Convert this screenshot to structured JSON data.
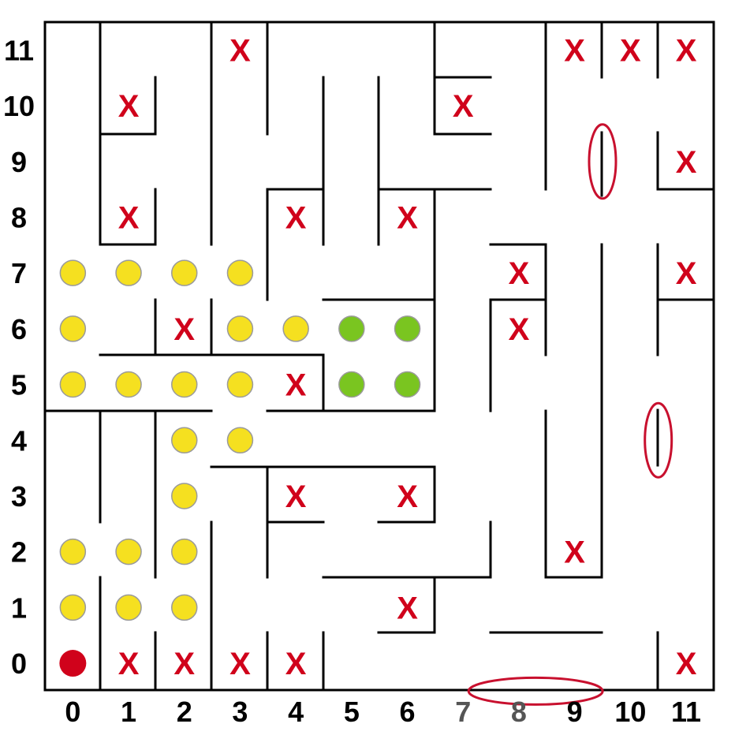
{
  "grid": {
    "columns": 12,
    "rows": 12,
    "x_labels": [
      "0",
      "1",
      "2",
      "3",
      "4",
      "5",
      "6",
      "7",
      "8",
      "9",
      "10",
      "11"
    ],
    "y_labels": [
      "0",
      "1",
      "2",
      "3",
      "4",
      "5",
      "6",
      "7",
      "8",
      "9",
      "10",
      "11"
    ]
  },
  "colors": {
    "wall": "#000000",
    "x_mark": "#d0021b",
    "start_marker": "#d0021b",
    "path_dot": "#f5e020",
    "goal_dot": "#7ac520",
    "dot_outline": "#9a9a9a",
    "highlight_ring": "#c8102e",
    "axis_label": "#000000",
    "axis_label_muted": "#555555"
  },
  "muted_x_labels": [
    "7",
    "8"
  ],
  "start": {
    "col": 0,
    "row": 0
  },
  "x_mark_symbol": "X",
  "x_marks": [
    [
      3,
      11
    ],
    [
      9,
      11
    ],
    [
      10,
      11
    ],
    [
      11,
      11
    ],
    [
      1,
      10
    ],
    [
      7,
      10
    ],
    [
      11,
      9
    ],
    [
      1,
      8
    ],
    [
      4,
      8
    ],
    [
      6,
      8
    ],
    [
      8,
      7
    ],
    [
      11,
      7
    ],
    [
      2,
      6
    ],
    [
      8,
      6
    ],
    [
      4,
      5
    ],
    [
      4,
      3
    ],
    [
      6,
      3
    ],
    [
      9,
      2
    ],
    [
      6,
      1
    ],
    [
      1,
      0
    ],
    [
      2,
      0
    ],
    [
      3,
      0
    ],
    [
      4,
      0
    ],
    [
      11,
      0
    ]
  ],
  "path_dots": [
    [
      0,
      7
    ],
    [
      1,
      7
    ],
    [
      2,
      7
    ],
    [
      3,
      7
    ],
    [
      0,
      6
    ],
    [
      3,
      6
    ],
    [
      4,
      6
    ],
    [
      0,
      5
    ],
    [
      1,
      5
    ],
    [
      2,
      5
    ],
    [
      3,
      5
    ],
    [
      2,
      4
    ],
    [
      3,
      4
    ],
    [
      2,
      3
    ],
    [
      0,
      2
    ],
    [
      1,
      2
    ],
    [
      2,
      2
    ],
    [
      0,
      1
    ],
    [
      1,
      1
    ],
    [
      2,
      1
    ]
  ],
  "goal_dots": [
    [
      5,
      6
    ],
    [
      6,
      6
    ],
    [
      5,
      5
    ],
    [
      6,
      5
    ]
  ],
  "highlighted_walls": [
    {
      "orientation": "vertical",
      "col": 9,
      "row": 9
    },
    {
      "orientation": "vertical",
      "col": 10,
      "row": 4
    },
    {
      "orientation": "horizontal",
      "col": 8,
      "row": 0
    }
  ]
}
